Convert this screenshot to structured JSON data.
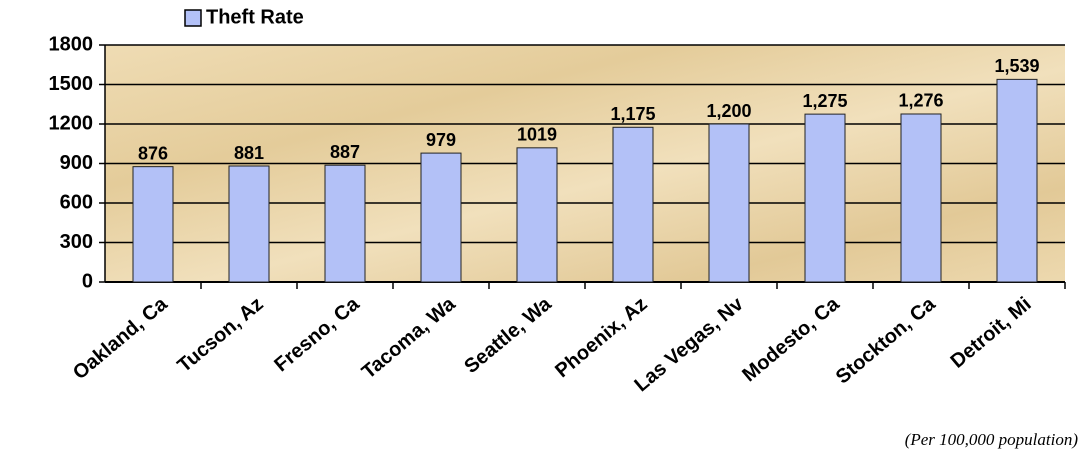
{
  "chart_data": {
    "type": "bar",
    "series": [
      {
        "name": "Theft Rate",
        "color": "#b3c1f7",
        "values": [
          876,
          881,
          887,
          979,
          1019,
          1175,
          1200,
          1275,
          1276,
          1539
        ],
        "value_labels": [
          "876",
          "881",
          "887",
          "979",
          "1019",
          "1,175",
          "1,200",
          "1,275",
          "1,276",
          "1,539"
        ]
      }
    ],
    "categories": [
      "Oakland, Ca",
      "Tucson, Az",
      "Fresno, Ca",
      "Tacoma, Wa",
      "Seattle, Wa",
      "Phoenix, Az",
      "Las Vegas, Nv",
      "Modesto, Ca",
      "Stockton, Ca",
      "Detroit, Mi"
    ],
    "ylim": [
      0,
      1800
    ],
    "yticks": [
      0,
      300,
      600,
      900,
      1200,
      1500,
      1800
    ],
    "grid": true,
    "legend": "top",
    "annotation": "(Per 100,000 population)"
  }
}
